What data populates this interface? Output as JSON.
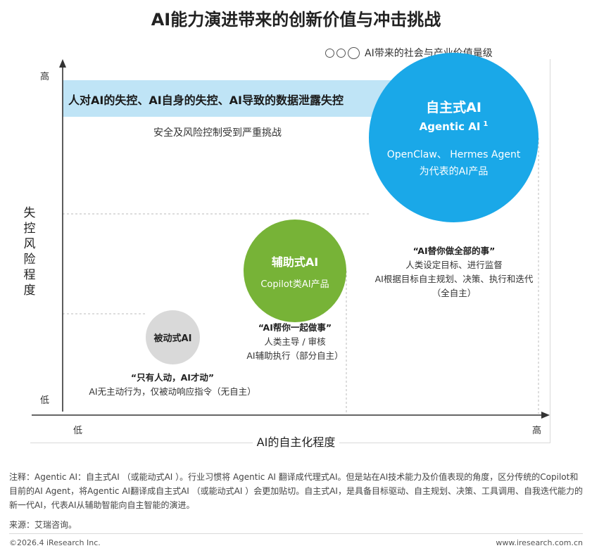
{
  "title": "AI能力演进带来的创新价值与冲击挑战",
  "legend": {
    "label": "AI带来的社会与产业价值量级"
  },
  "risk_band": {
    "headline": "人对AI的失控、AI自身的失控、AI导致的数据泄露失控",
    "subtext": "安全及风险控制受到严重挑战"
  },
  "axes": {
    "y_label": "失控风险程度",
    "x_label": "AI的自主化程度",
    "y_high": "高",
    "y_low": "低",
    "x_low": "低",
    "x_high": "高"
  },
  "chart_data": {
    "type": "scatter",
    "title": "AI能力演进带来的创新价值与冲击挑战",
    "xlabel": "AI的自主化程度",
    "ylabel": "失控风险程度",
    "points": [
      {
        "name": "被动式AI",
        "x_level": "低",
        "y_level": "低",
        "value_level": "小",
        "quote": "“只有人动，AI才动”",
        "desc_lines": [
          "AI无主动行为，仅被动响应指令（无自主）"
        ]
      },
      {
        "name": "辅助式AI",
        "subtitle": "Copilot类AI产品",
        "x_level": "中",
        "y_level": "中",
        "value_level": "中",
        "quote": "“AI帮你一起做事”",
        "desc_lines": [
          "人类主导 / 审核",
          "AI辅助执行（部分自主）"
        ]
      },
      {
        "name": "自主式AI",
        "name_en": "Agentic AI",
        "superscript": "1",
        "subtitle_lines": [
          "OpenClaw、 Hermes Agent",
          "为代表的AI产品"
        ],
        "x_level": "高",
        "y_level": "高",
        "value_level": "大",
        "quote": "“AI替你做全部的事”",
        "desc_lines": [
          "人类设定目标、进行监督",
          "AI根据目标自主规划、决策、执行和迭代",
          "（全自主）"
        ]
      }
    ]
  },
  "note": "注释：Agentic AI：自主式AI （或能动式AI ）。行业习惯将 Agentic AI 翻译成代理式AI。但是站在AI技术能力及价值表现的角度，区分传统的Copilot和目前的AI Agent，将Agentic AI翻译成自主式AI （或能动式AI ）会更加贴切。自主式AI，是具备目标驱动、自主规划、决策、工具调用、自我迭代能力的新一代AI，代表AI从辅助智能向自主智能的演进。",
  "source": "来源：艾瑞咨询。",
  "footer": {
    "copyright": "©2026.4 iResearch Inc.",
    "website": "www.iresearch.com.cn"
  },
  "colors": {
    "agentic": "#1aa8e8",
    "assistive": "#77b337",
    "passive": "#d9d9d9",
    "band": "#bfe4f6"
  }
}
